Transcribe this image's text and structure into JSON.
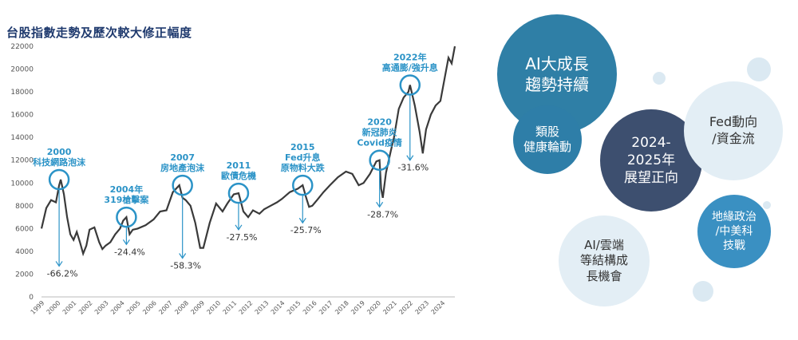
{
  "title": "台股指數走勢及歷次較大修正幅度",
  "chart_data": {
    "type": "line",
    "title": "台股指數走勢及歷次較大修正幅度",
    "ylim": [
      0,
      22000
    ],
    "yticks": [
      0,
      2000,
      4000,
      6000,
      8000,
      10000,
      12000,
      14000,
      16000,
      18000,
      20000,
      22000
    ],
    "xlim": [
      1999,
      2024.8
    ],
    "xticks": [
      "1999",
      "2000",
      "2001",
      "2002",
      "2003",
      "2004",
      "2005",
      "2006",
      "2007",
      "2008",
      "2009",
      "2010",
      "2011",
      "2012",
      "2013",
      "2014",
      "2015",
      "2016",
      "2017",
      "2018",
      "2019",
      "2020",
      "2021",
      "2022",
      "2023",
      "2024"
    ],
    "grid": false,
    "line_color": "#3a3a3a",
    "x": [
      1999.0,
      1999.3,
      1999.6,
      1999.9,
      2000.1,
      2000.2,
      2000.4,
      2000.6,
      2000.8,
      2001.0,
      2001.2,
      2001.4,
      2001.6,
      2001.8,
      2002.0,
      2002.3,
      2002.6,
      2002.8,
      2003.0,
      2003.3,
      2003.6,
      2003.9,
      2004.1,
      2004.3,
      2004.5,
      2004.7,
      2005.0,
      2005.5,
      2006.0,
      2006.4,
      2006.8,
      2007.2,
      2007.6,
      2007.8,
      2008.0,
      2008.3,
      2008.6,
      2008.9,
      2009.1,
      2009.5,
      2009.9,
      2010.3,
      2010.6,
      2011.0,
      2011.3,
      2011.6,
      2011.9,
      2012.2,
      2012.6,
      2012.9,
      2013.3,
      2013.7,
      2014.0,
      2014.5,
      2015.0,
      2015.3,
      2015.5,
      2015.7,
      2015.9,
      2016.2,
      2016.6,
      2017.0,
      2017.5,
      2018.0,
      2018.4,
      2018.8,
      2019.1,
      2019.5,
      2019.9,
      2020.1,
      2020.2,
      2020.3,
      2020.5,
      2020.8,
      2021.0,
      2021.3,
      2021.6,
      2021.9,
      2022.0,
      2022.3,
      2022.6,
      2022.8,
      2023.0,
      2023.3,
      2023.6,
      2023.9,
      2024.2,
      2024.4,
      2024.6,
      2024.8
    ],
    "y": [
      6000,
      7800,
      8500,
      8300,
      9800,
      10300,
      9000,
      7000,
      5500,
      5000,
      5700,
      4800,
      3800,
      4500,
      5900,
      6100,
      4800,
      4200,
      4500,
      4800,
      5500,
      6000,
      6700,
      7000,
      5500,
      5900,
      6000,
      6300,
      6800,
      7500,
      7600,
      9200,
      9800,
      8700,
      8500,
      8000,
      6500,
      4300,
      4300,
      6500,
      8200,
      7500,
      8200,
      9000,
      9100,
      7500,
      7000,
      7600,
      7300,
      7700,
      8000,
      8300,
      8600,
      9200,
      9500,
      9800,
      8800,
      7900,
      8000,
      8500,
      9200,
      9800,
      10500,
      11000,
      10800,
      9800,
      10000,
      10800,
      11900,
      12000,
      9500,
      8700,
      10900,
      12800,
      14000,
      16500,
      17500,
      18000,
      18600,
      16800,
      14500,
      12600,
      14700,
      16000,
      16800,
      17200,
      19500,
      21000,
      20500,
      22000
    ],
    "annotations": [
      {
        "year": 2000.1,
        "peak": 10300,
        "label": "2000\n科技網路泡沫",
        "drawdown": "-66.2%",
        "trough": 3400
      },
      {
        "year": 2004.3,
        "peak": 7000,
        "label": "2004年\n319槍擊案",
        "drawdown": "-24.4%",
        "trough": 5300
      },
      {
        "year": 2007.8,
        "peak": 9800,
        "label": "2007\n房地產泡沫",
        "drawdown": "-58.3%",
        "trough": 4100
      },
      {
        "year": 2011.3,
        "peak": 9100,
        "label": "2011\n歐債危機",
        "drawdown": "-27.5%",
        "trough": 6600
      },
      {
        "year": 2015.3,
        "peak": 9800,
        "label": "2015\nFed升息\n原物料大跌",
        "drawdown": "-25.7%",
        "trough": 7200
      },
      {
        "year": 2020.1,
        "peak": 12000,
        "label": "2020\n新冠肺炎\nCovid疫情",
        "drawdown": "-28.7%",
        "trough": 8600
      },
      {
        "year": 2022.0,
        "peak": 18600,
        "label": "2022年\n高通膨/強升息",
        "drawdown": "-31.6%",
        "trough": 12700
      }
    ]
  },
  "bubbles": [
    {
      "id": "ai-growth",
      "text": "AI大成長\n趨勢持續",
      "bg": "#2f7fa6",
      "color": "#ffffff"
    },
    {
      "id": "defensive",
      "text": "類股\n健康輪動",
      "bg": "#2e7ea8",
      "color": "#ffffff"
    },
    {
      "id": "outlook",
      "text": "2024-\n2025年\n展望正向",
      "bg": "#3d4f6f",
      "color": "#ffffff"
    },
    {
      "id": "fed",
      "text": "Fed動向\n/資金流",
      "bg": "#e3eef5",
      "color": "#333333"
    },
    {
      "id": "geo",
      "text": "地緣政治\n/中美科\n技戰",
      "bg": "#3a90c2",
      "color": "#ffffff"
    },
    {
      "id": "cloud",
      "text": "AI/雲端\n等結構成\n長機會",
      "bg": "#e3eef5",
      "color": "#333333"
    }
  ]
}
